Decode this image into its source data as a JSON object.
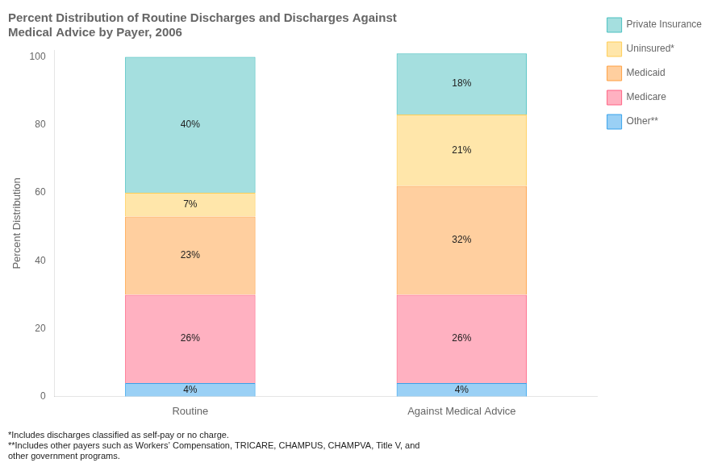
{
  "chart_data": {
    "type": "bar",
    "title": [
      "Percent Distribution of Routine Discharges and Discharges Against",
      "Medical Advice by Payer, 2006"
    ],
    "categories": [
      "Routine",
      "Against Medical Advice"
    ],
    "series": [
      {
        "name": "Other**",
        "values": [
          4,
          4
        ],
        "value_labels": [
          "4%",
          "4%"
        ]
      },
      {
        "name": "Medicare",
        "values": [
          26,
          26
        ],
        "value_labels": [
          "26%",
          "26%"
        ]
      },
      {
        "name": "Medicaid",
        "values": [
          23,
          32
        ],
        "value_labels": [
          "23%",
          "32%"
        ]
      },
      {
        "name": "Uninsured*",
        "values": [
          7,
          21
        ],
        "value_labels": [
          "7%",
          "21%"
        ]
      },
      {
        "name": "Private Insurance",
        "values": [
          40,
          18
        ],
        "value_labels": [
          "40%",
          "18%"
        ]
      }
    ],
    "y_label": "Percent Distribution",
    "ylim": [
      0,
      102
    ],
    "yticks": [
      0,
      20,
      40,
      60,
      80,
      100
    ],
    "stacked": true,
    "data_labels": true,
    "grid": false,
    "legend": "right",
    "annotations": [
      "*Includes discharges classified as self-pay or no charge.",
      "**Includes other payers such as Workers’ Compensation, TRICARE, CHAMPUS, CHAMPVA, Title V, and",
      "other government programs."
    ]
  }
}
